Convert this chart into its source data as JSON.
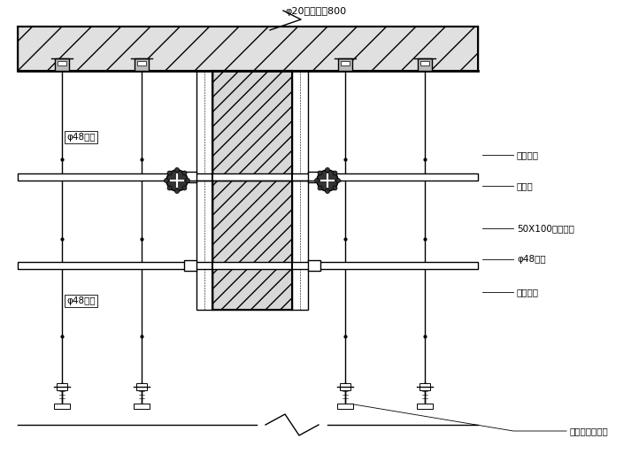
{
  "bg_color": "#ffffff",
  "line_color": "#000000",
  "figsize": [
    7.22,
    5.13
  ],
  "dpi": 100,
  "labels": {
    "top_annotation": "φ20钉筋插棒800",
    "pipe_upper": "φ48钉管",
    "pipe_lower": "φ48钉管",
    "label1": "础结构架",
    "label2": "九夹板",
    "label3": "50X100木方横挡",
    "label4": "φ48钉管",
    "label5": "对拉螺栓",
    "label6": "可调节钉支顶架"
  }
}
